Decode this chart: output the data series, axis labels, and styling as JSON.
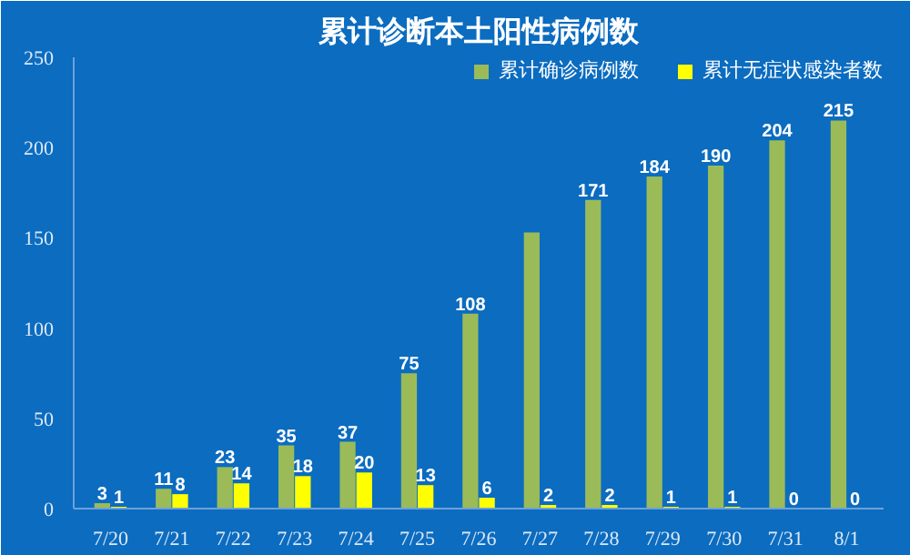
{
  "chart_data": {
    "type": "bar",
    "title": "累计诊断本土阳性病例数",
    "categories": [
      "7/20",
      "7/21",
      "7/22",
      "7/23",
      "7/24",
      "7/25",
      "7/26",
      "7/27",
      "7/28",
      "7/29",
      "7/30",
      "7/31",
      "8/1"
    ],
    "series": [
      {
        "name": "累计确诊病例数",
        "color": "#9bbb59",
        "values": [
          3,
          11,
          23,
          35,
          37,
          75,
          108,
          153,
          171,
          184,
          190,
          204,
          215
        ],
        "value_labels": [
          "3",
          "11",
          "23",
          "35",
          "37",
          "75",
          "108",
          null,
          "171",
          "184",
          "190",
          "204",
          "215"
        ]
      },
      {
        "name": "累计无症状感染者数",
        "color": "#ffff00",
        "values": [
          1,
          8,
          14,
          18,
          20,
          13,
          6,
          2,
          2,
          1,
          1,
          0,
          0
        ],
        "value_labels": [
          "1",
          "8",
          "14",
          "18",
          "20",
          "13",
          "6",
          "2",
          "2",
          "1",
          "1",
          "0",
          "0"
        ]
      }
    ],
    "ylim": [
      0,
      250
    ],
    "yticks": [
      0,
      50,
      100,
      150,
      200,
      250
    ],
    "grid": false,
    "legend": "top"
  }
}
